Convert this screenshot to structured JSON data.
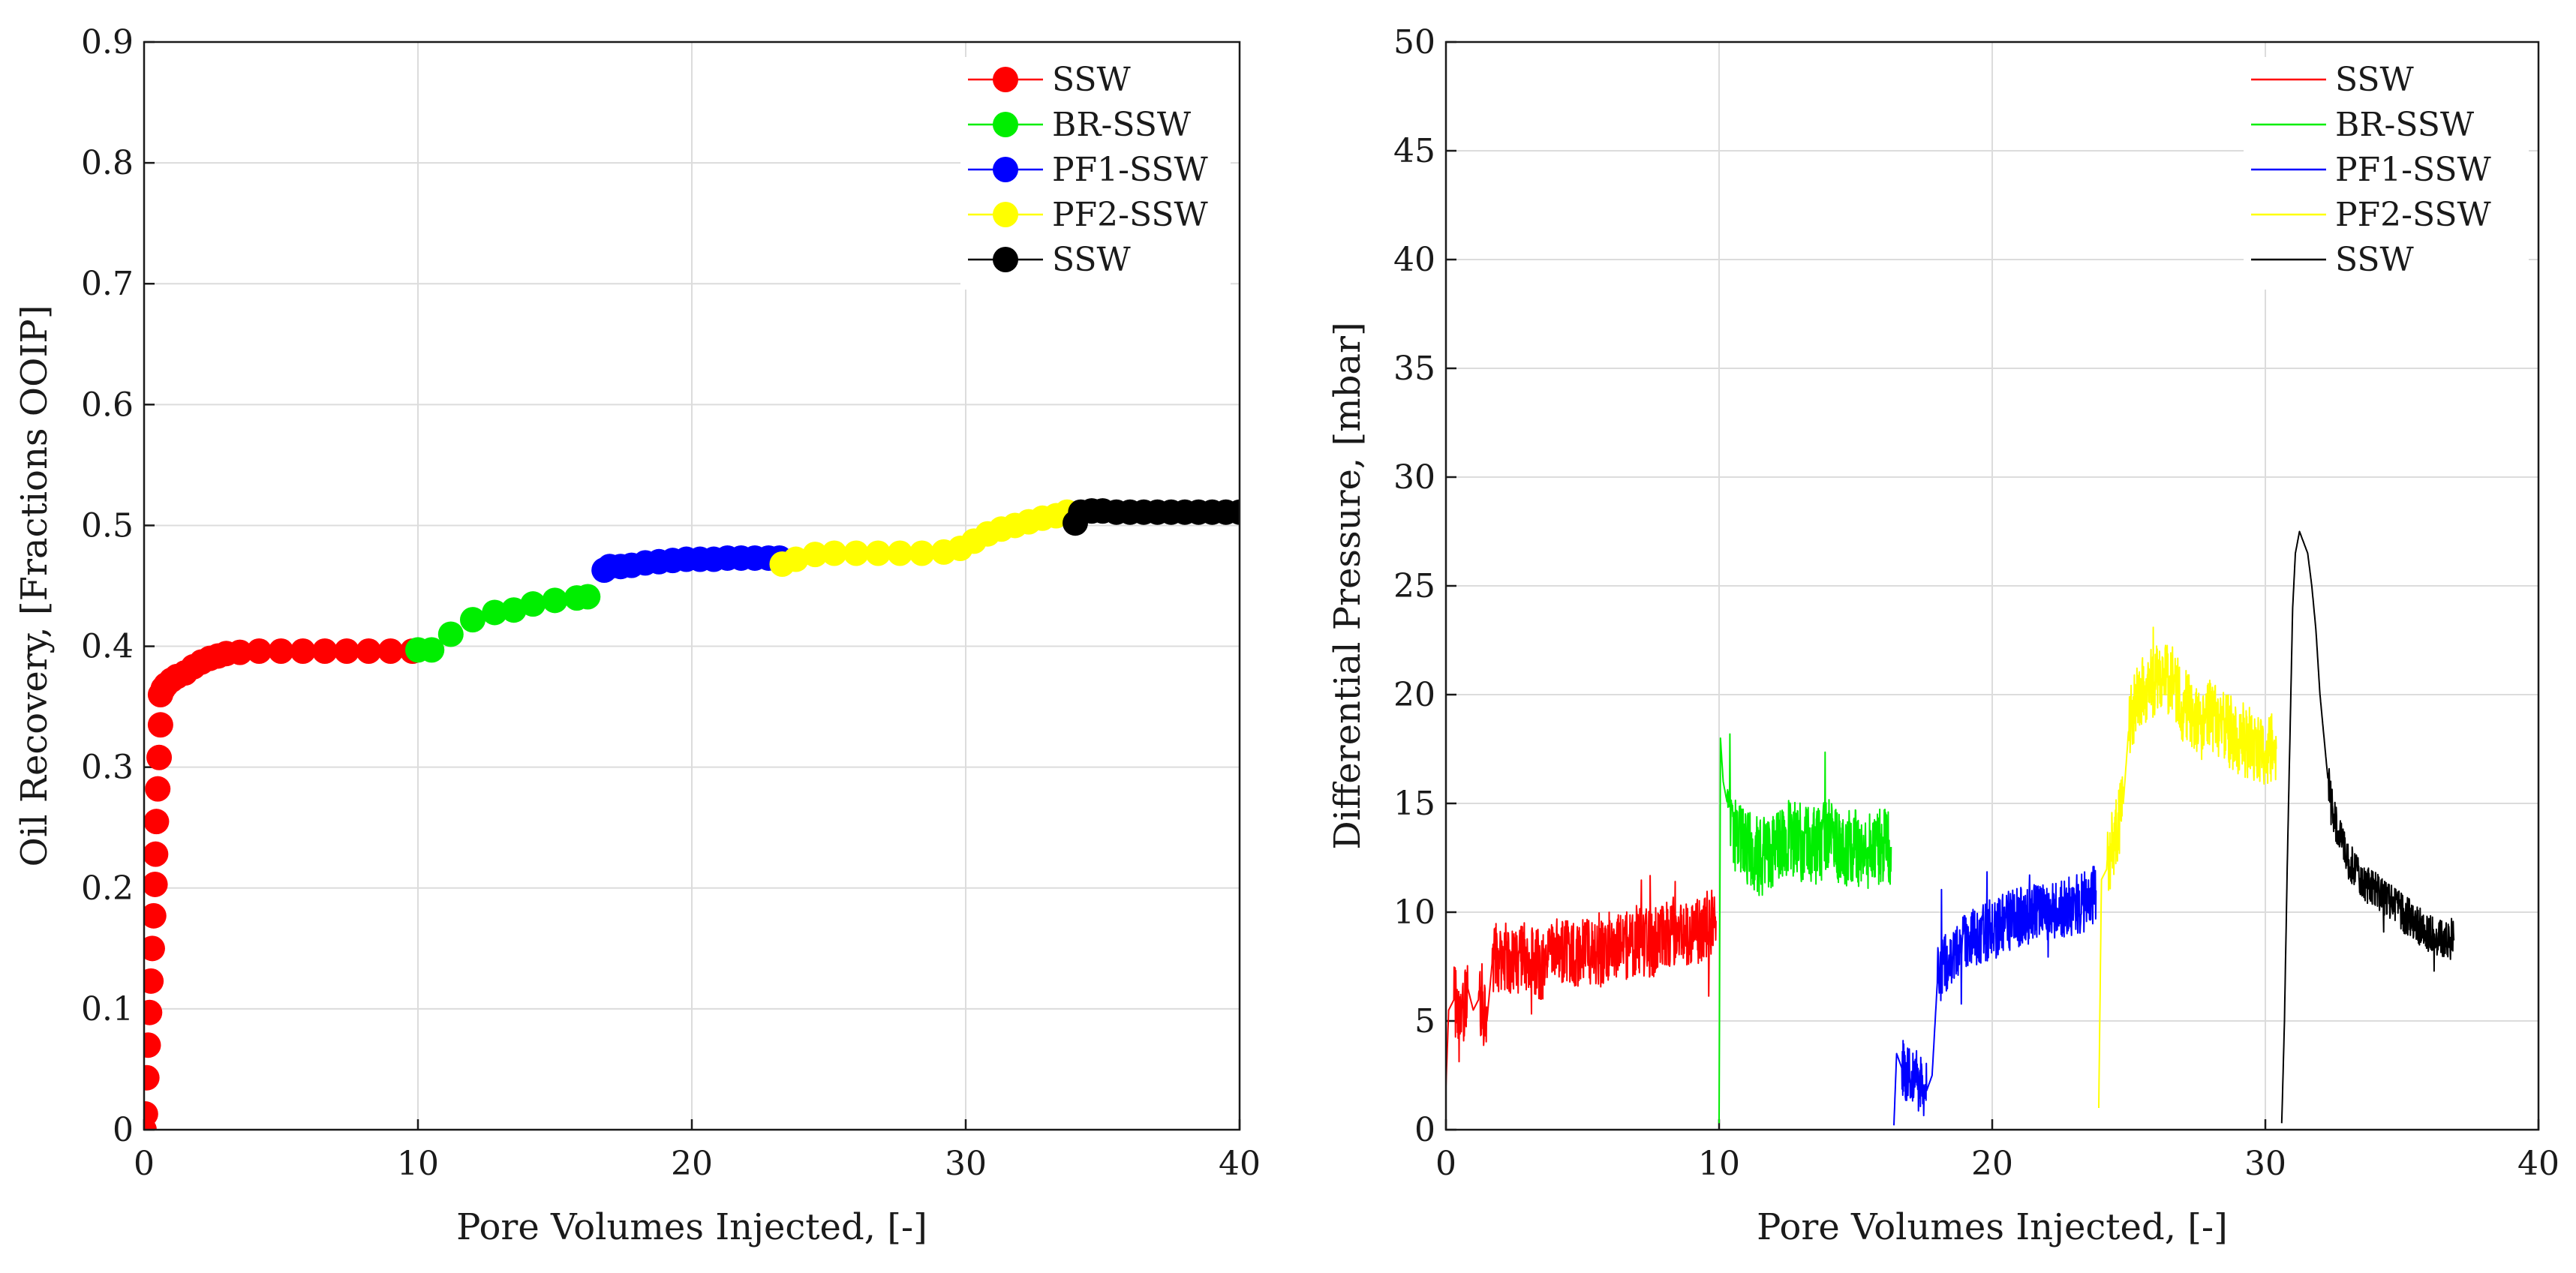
{
  "chart_data": [
    {
      "type": "scatter",
      "xlabel": "Pore Volumes Injected, [-]",
      "ylabel": "Oil Recovery, [Fractions OOIP]",
      "xlim": [
        0,
        40
      ],
      "ylim": [
        0,
        0.9
      ],
      "xticks": [
        "0",
        "10",
        "20",
        "30",
        "40"
      ],
      "yticks": [
        "0",
        "0.1",
        "0.2",
        "0.3",
        "0.4",
        "0.5",
        "0.6",
        "0.7",
        "0.8",
        "0.9"
      ],
      "grid": true,
      "legend_position": "top-right",
      "series": [
        {
          "name": "SSW",
          "color": "#ff0000",
          "x": [
            0,
            0.05,
            0.1,
            0.15,
            0.2,
            0.25,
            0.3,
            0.35,
            0.4,
            0.42,
            0.45,
            0.5,
            0.55,
            0.6,
            0.6,
            0.7,
            0.8,
            1.0,
            1.2,
            1.5,
            1.8,
            2.1,
            2.4,
            2.7,
            3.0,
            3.5,
            4.2,
            5.0,
            5.8,
            6.6,
            7.4,
            8.2,
            9.0,
            9.8
          ],
          "y": [
            0,
            0.013,
            0.043,
            0.07,
            0.097,
            0.123,
            0.15,
            0.177,
            0.203,
            0.228,
            0.255,
            0.282,
            0.308,
            0.335,
            0.36,
            0.365,
            0.368,
            0.372,
            0.375,
            0.378,
            0.383,
            0.387,
            0.39,
            0.392,
            0.394,
            0.395,
            0.396,
            0.396,
            0.396,
            0.396,
            0.396,
            0.396,
            0.396,
            0.396
          ]
        },
        {
          "name": "BR-SSW",
          "color": "#00ee00",
          "x": [
            10,
            10.5,
            11.2,
            12.0,
            12.8,
            13.5,
            14.2,
            15.0,
            15.8,
            16.2
          ],
          "y": [
            0.397,
            0.397,
            0.41,
            0.422,
            0.428,
            0.43,
            0.435,
            0.438,
            0.44,
            0.441
          ]
        },
        {
          "name": "PF1-SSW",
          "color": "#0000ff",
          "x": [
            16.8,
            17.0,
            17.4,
            17.8,
            18.3,
            18.8,
            19.3,
            19.8,
            20.3,
            20.8,
            21.3,
            21.8,
            22.3,
            22.8,
            23.2
          ],
          "y": [
            0.463,
            0.466,
            0.466,
            0.467,
            0.469,
            0.47,
            0.471,
            0.472,
            0.472,
            0.472,
            0.473,
            0.473,
            0.473,
            0.473,
            0.473
          ]
        },
        {
          "name": "PF2-SSW",
          "color": "#ffff00",
          "x": [
            23.3,
            23.8,
            24.5,
            25.2,
            26.0,
            26.8,
            27.6,
            28.4,
            29.2,
            29.8,
            30.3,
            30.8,
            31.3,
            31.8,
            32.3,
            32.8,
            33.3,
            33.7
          ],
          "y": [
            0.468,
            0.472,
            0.476,
            0.477,
            0.477,
            0.477,
            0.477,
            0.477,
            0.478,
            0.481,
            0.487,
            0.493,
            0.497,
            0.5,
            0.503,
            0.506,
            0.508,
            0.511
          ]
        },
        {
          "name": "SSW",
          "color": "#000000",
          "x": [
            34.0,
            34.2,
            34.6,
            35.0,
            35.5,
            36.0,
            36.5,
            37.0,
            37.5,
            38.0,
            38.5,
            39.0,
            39.5,
            40.0
          ],
          "y": [
            0.502,
            0.511,
            0.512,
            0.512,
            0.511,
            0.511,
            0.511,
            0.511,
            0.511,
            0.511,
            0.511,
            0.511,
            0.511,
            0.511
          ]
        }
      ]
    },
    {
      "type": "line",
      "xlabel": "Pore Volumes Injected, [-]",
      "ylabel": "Differential Pressure, [mbar]",
      "xlim": [
        0,
        40
      ],
      "ylim": [
        0,
        50
      ],
      "xticks": [
        "0",
        "10",
        "20",
        "30",
        "40"
      ],
      "yticks": [
        "0",
        "5",
        "10",
        "15",
        "20",
        "25",
        "30",
        "35",
        "40",
        "45",
        "50"
      ],
      "grid": true,
      "legend_position": "top-right",
      "series": [
        {
          "name": "SSW",
          "color": "#ff0000",
          "x": [
            0.0,
            0.1,
            0.3,
            0.6,
            0.8,
            1.0,
            1.2,
            1.5,
            1.7,
            2.0,
            2.5,
            3.0,
            3.5,
            4.0,
            4.5,
            5.0,
            5.5,
            6.0,
            6.5,
            7.0,
            7.5,
            8.0,
            8.5,
            9.0,
            9.5,
            9.9
          ],
          "y": [
            2.0,
            5.5,
            6.0,
            5.0,
            6.5,
            5.5,
            6.0,
            5.0,
            7.8,
            8.0,
            7.8,
            8.0,
            7.5,
            8.2,
            8.0,
            8.3,
            8.0,
            8.5,
            8.3,
            8.8,
            8.5,
            9.0,
            9.2,
            8.8,
            9.5,
            9.6
          ],
          "noise": 1.6
        },
        {
          "name": "BR-SSW",
          "color": "#00ee00",
          "x": [
            10.0,
            10.05,
            10.15,
            10.3,
            10.6,
            11.0,
            11.5,
            12.0,
            12.5,
            13.0,
            13.5,
            14.0,
            14.5,
            15.0,
            15.5,
            16.0,
            16.3
          ],
          "y": [
            0.3,
            18.0,
            16.0,
            15.0,
            13.5,
            13.0,
            12.5,
            13.0,
            13.5,
            13.2,
            13.0,
            13.5,
            12.8,
            13.0,
            12.7,
            13.0,
            13.0
          ],
          "noise": 1.8
        },
        {
          "name": "PF1-SSW",
          "color": "#0000ff",
          "x": [
            16.4,
            16.5,
            16.7,
            17.0,
            17.3,
            17.6,
            17.8,
            18.0,
            18.5,
            19.0,
            19.5,
            20.0,
            20.5,
            21.0,
            21.5,
            22.0,
            22.5,
            23.0,
            23.5,
            23.8
          ],
          "y": [
            0.2,
            3.5,
            2.8,
            2.5,
            2.2,
            1.8,
            2.5,
            7.0,
            8.0,
            8.5,
            9.0,
            9.2,
            9.5,
            9.8,
            10.0,
            10.0,
            10.2,
            10.3,
            10.5,
            11.0
          ],
          "noise": 1.4
        },
        {
          "name": "PF2-SSW",
          "color": "#ffff00",
          "x": [
            23.9,
            24.0,
            24.2,
            24.5,
            24.8,
            25.0,
            25.3,
            25.8,
            26.2,
            26.6,
            27.0,
            27.5,
            28.0,
            28.5,
            29.0,
            29.5,
            30.0,
            30.4
          ],
          "y": [
            1.0,
            11.5,
            12.0,
            13.5,
            15.0,
            18.5,
            20.0,
            20.5,
            21.0,
            20.5,
            19.5,
            19.0,
            19.0,
            18.5,
            18.0,
            17.8,
            17.5,
            17.5
          ],
          "noise": 1.7
        },
        {
          "name": "SSW",
          "color": "#000000",
          "x": [
            30.6,
            30.7,
            30.8,
            30.9,
            31.0,
            31.1,
            31.25,
            31.4,
            31.55,
            31.7,
            31.85,
            32.0,
            32.15,
            32.3,
            32.5,
            32.7,
            33.0,
            33.5,
            34.0,
            34.5,
            35.0,
            35.5,
            36.0,
            36.5,
            36.9
          ],
          "y": [
            0.3,
            5.0,
            12.0,
            18.0,
            24.0,
            26.5,
            27.5,
            27.0,
            26.5,
            25.0,
            23.0,
            20.0,
            18.0,
            16.0,
            14.5,
            13.5,
            12.5,
            11.5,
            11.0,
            10.5,
            10.0,
            9.5,
            9.0,
            8.8,
            8.7
          ],
          "noise": 0.9
        }
      ]
    }
  ]
}
